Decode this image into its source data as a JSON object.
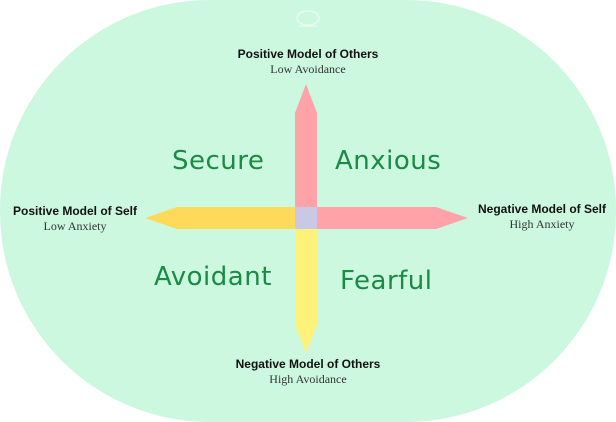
{
  "poles": {
    "top": {
      "title": "Positive Model of Others",
      "subtitle": "Low Avoidance"
    },
    "bottom": {
      "title": "Negative Model of Others",
      "subtitle": "High Avoidance"
    },
    "left": {
      "title": "Positive Model of Self",
      "subtitle": "Low Anxiety"
    },
    "right": {
      "title": "Negative Model of Self",
      "subtitle": "High Anxiety"
    }
  },
  "quadrants": {
    "top_left": "Secure",
    "top_right": "Anxious",
    "bottom_left": "Avoidant",
    "bottom_right": "Fearful"
  },
  "colors": {
    "background": "#ccf8e0",
    "quadrant_text": "#1a8a45",
    "arrow_up": "#ffa3a8",
    "arrow_right": "#ffa3a8",
    "arrow_left": "#ffd95a",
    "arrow_down": "#fff27a",
    "center": "#c9c9e6"
  }
}
